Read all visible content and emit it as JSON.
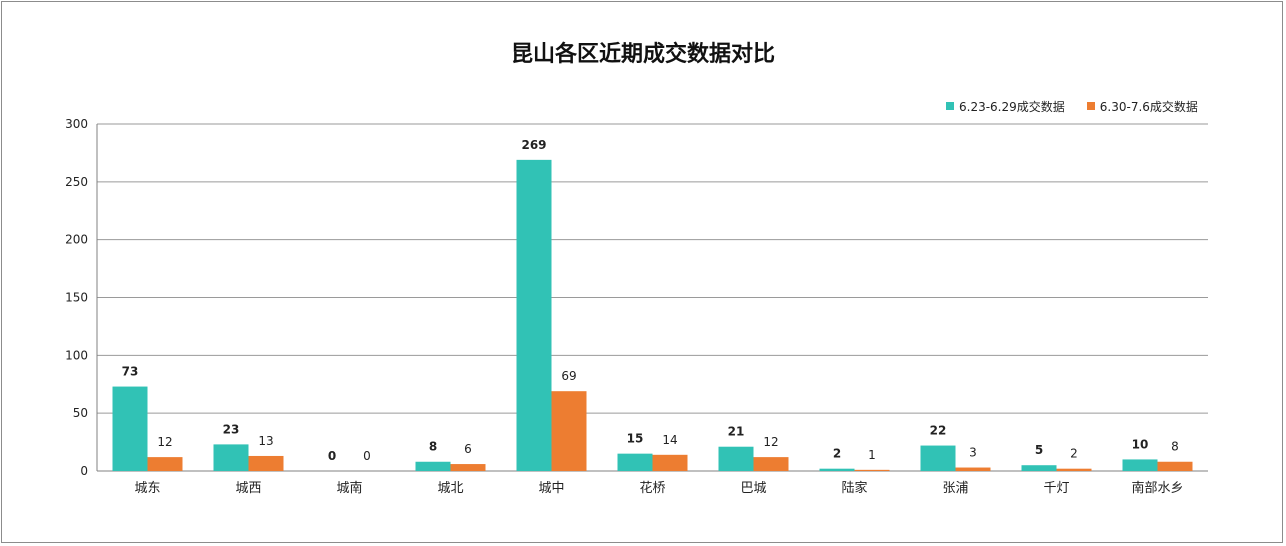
{
  "chart_data": {
    "type": "bar",
    "title": "昆山各区近期成交数据对比",
    "categories": [
      "城东",
      "城西",
      "城南",
      "城北",
      "城中",
      "花桥",
      "巴城",
      "陆家",
      "张浦",
      "千灯",
      "南部水乡"
    ],
    "series": [
      {
        "name": "6.23-6.29成交数据",
        "color": "#31c2b5",
        "values": [
          73,
          23,
          0,
          8,
          269,
          15,
          21,
          2,
          22,
          5,
          10
        ]
      },
      {
        "name": "6.30-7.6成交数据",
        "color": "#ed7d31",
        "values": [
          12,
          13,
          0,
          6,
          69,
          14,
          12,
          1,
          3,
          2,
          8
        ]
      }
    ],
    "ylim": [
      0,
      300
    ],
    "yticks": [
      0,
      50,
      100,
      150,
      200,
      250,
      300
    ],
    "grid": true,
    "legend_position": "top-right",
    "data_labels": true
  }
}
